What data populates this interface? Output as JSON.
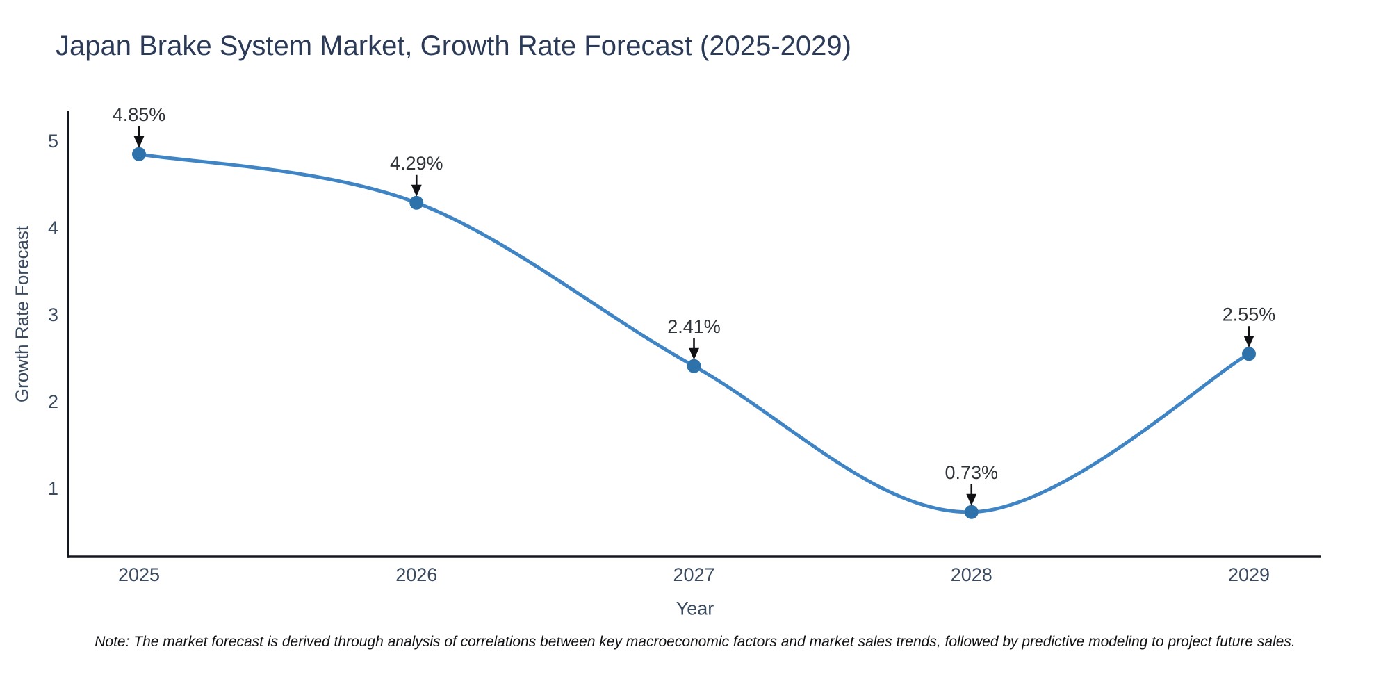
{
  "note": "Note: The market forecast is derived through analysis of correlations between key macroeconomic factors and market sales trends, followed by predictive modeling to project future sales.",
  "chart_data": {
    "type": "line",
    "title": "Japan Brake System Market, Growth Rate Forecast (2025-2029)",
    "xlabel": "Year",
    "ylabel": "Growth Rate Forecast",
    "x": [
      "2025",
      "2026",
      "2027",
      "2028",
      "2029"
    ],
    "series": [
      {
        "name": "Growth Rate Forecast",
        "values": [
          4.85,
          4.29,
          2.41,
          0.73,
          2.55
        ]
      }
    ],
    "point_labels": [
      "4.85%",
      "4.29%",
      "2.41%",
      "0.73%",
      "2.55%"
    ],
    "yticks": [
      1,
      2,
      3,
      4,
      5
    ],
    "ylim": [
      0.23,
      5.35
    ],
    "grid": false,
    "legend": "none",
    "smooth": true,
    "line_color": "#3f84c4",
    "marker_color": "#2e72ab",
    "spine_color": "#15181f",
    "axis_text_color": "#3a4a5f",
    "annotation_text_color": "#2e3338",
    "arrow_color": "#101114",
    "title_color": "#2b3a57"
  }
}
